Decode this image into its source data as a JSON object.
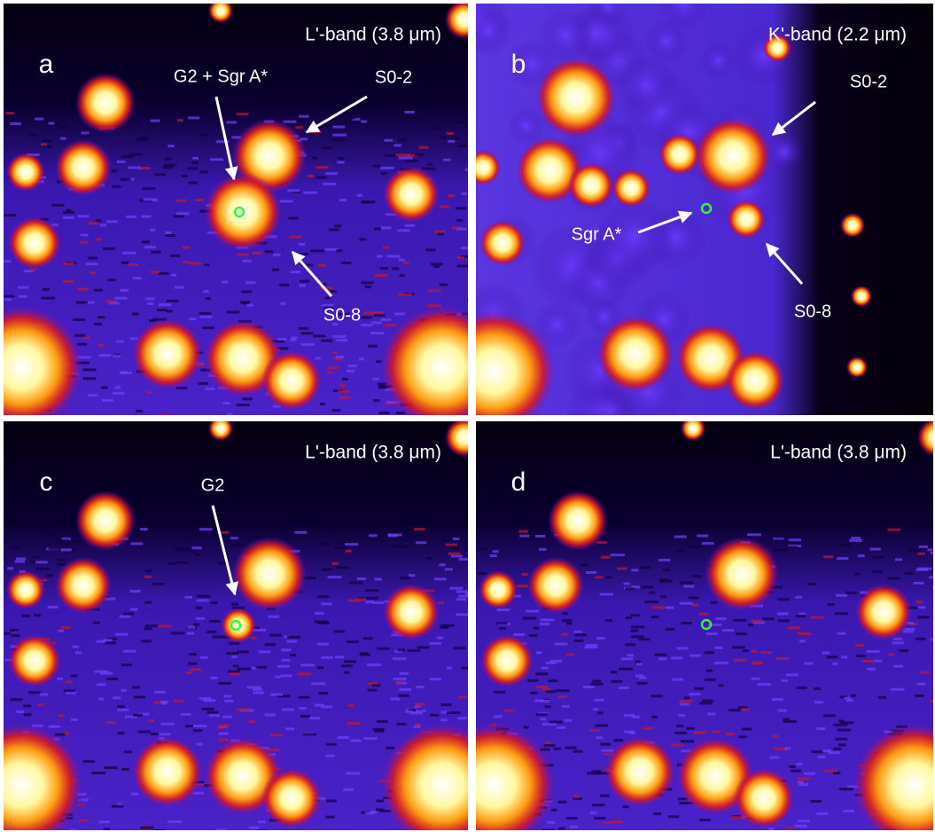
{
  "panels": [
    {
      "letter": "a",
      "band": "L'-band (3.8 μm)",
      "annotations": [
        "G2 + Sgr A*",
        "S0-2",
        "S0-8"
      ]
    },
    {
      "letter": "b",
      "band": "K'-band (2.2 μm)",
      "annotations": [
        "S0-2",
        "Sgr A*",
        "S0-8"
      ]
    },
    {
      "letter": "c",
      "band": "L'-band (3.8 μm)",
      "annotations": [
        "G2"
      ]
    },
    {
      "letter": "d",
      "band": "L'-band (3.8 μm)",
      "annotations": []
    }
  ]
}
